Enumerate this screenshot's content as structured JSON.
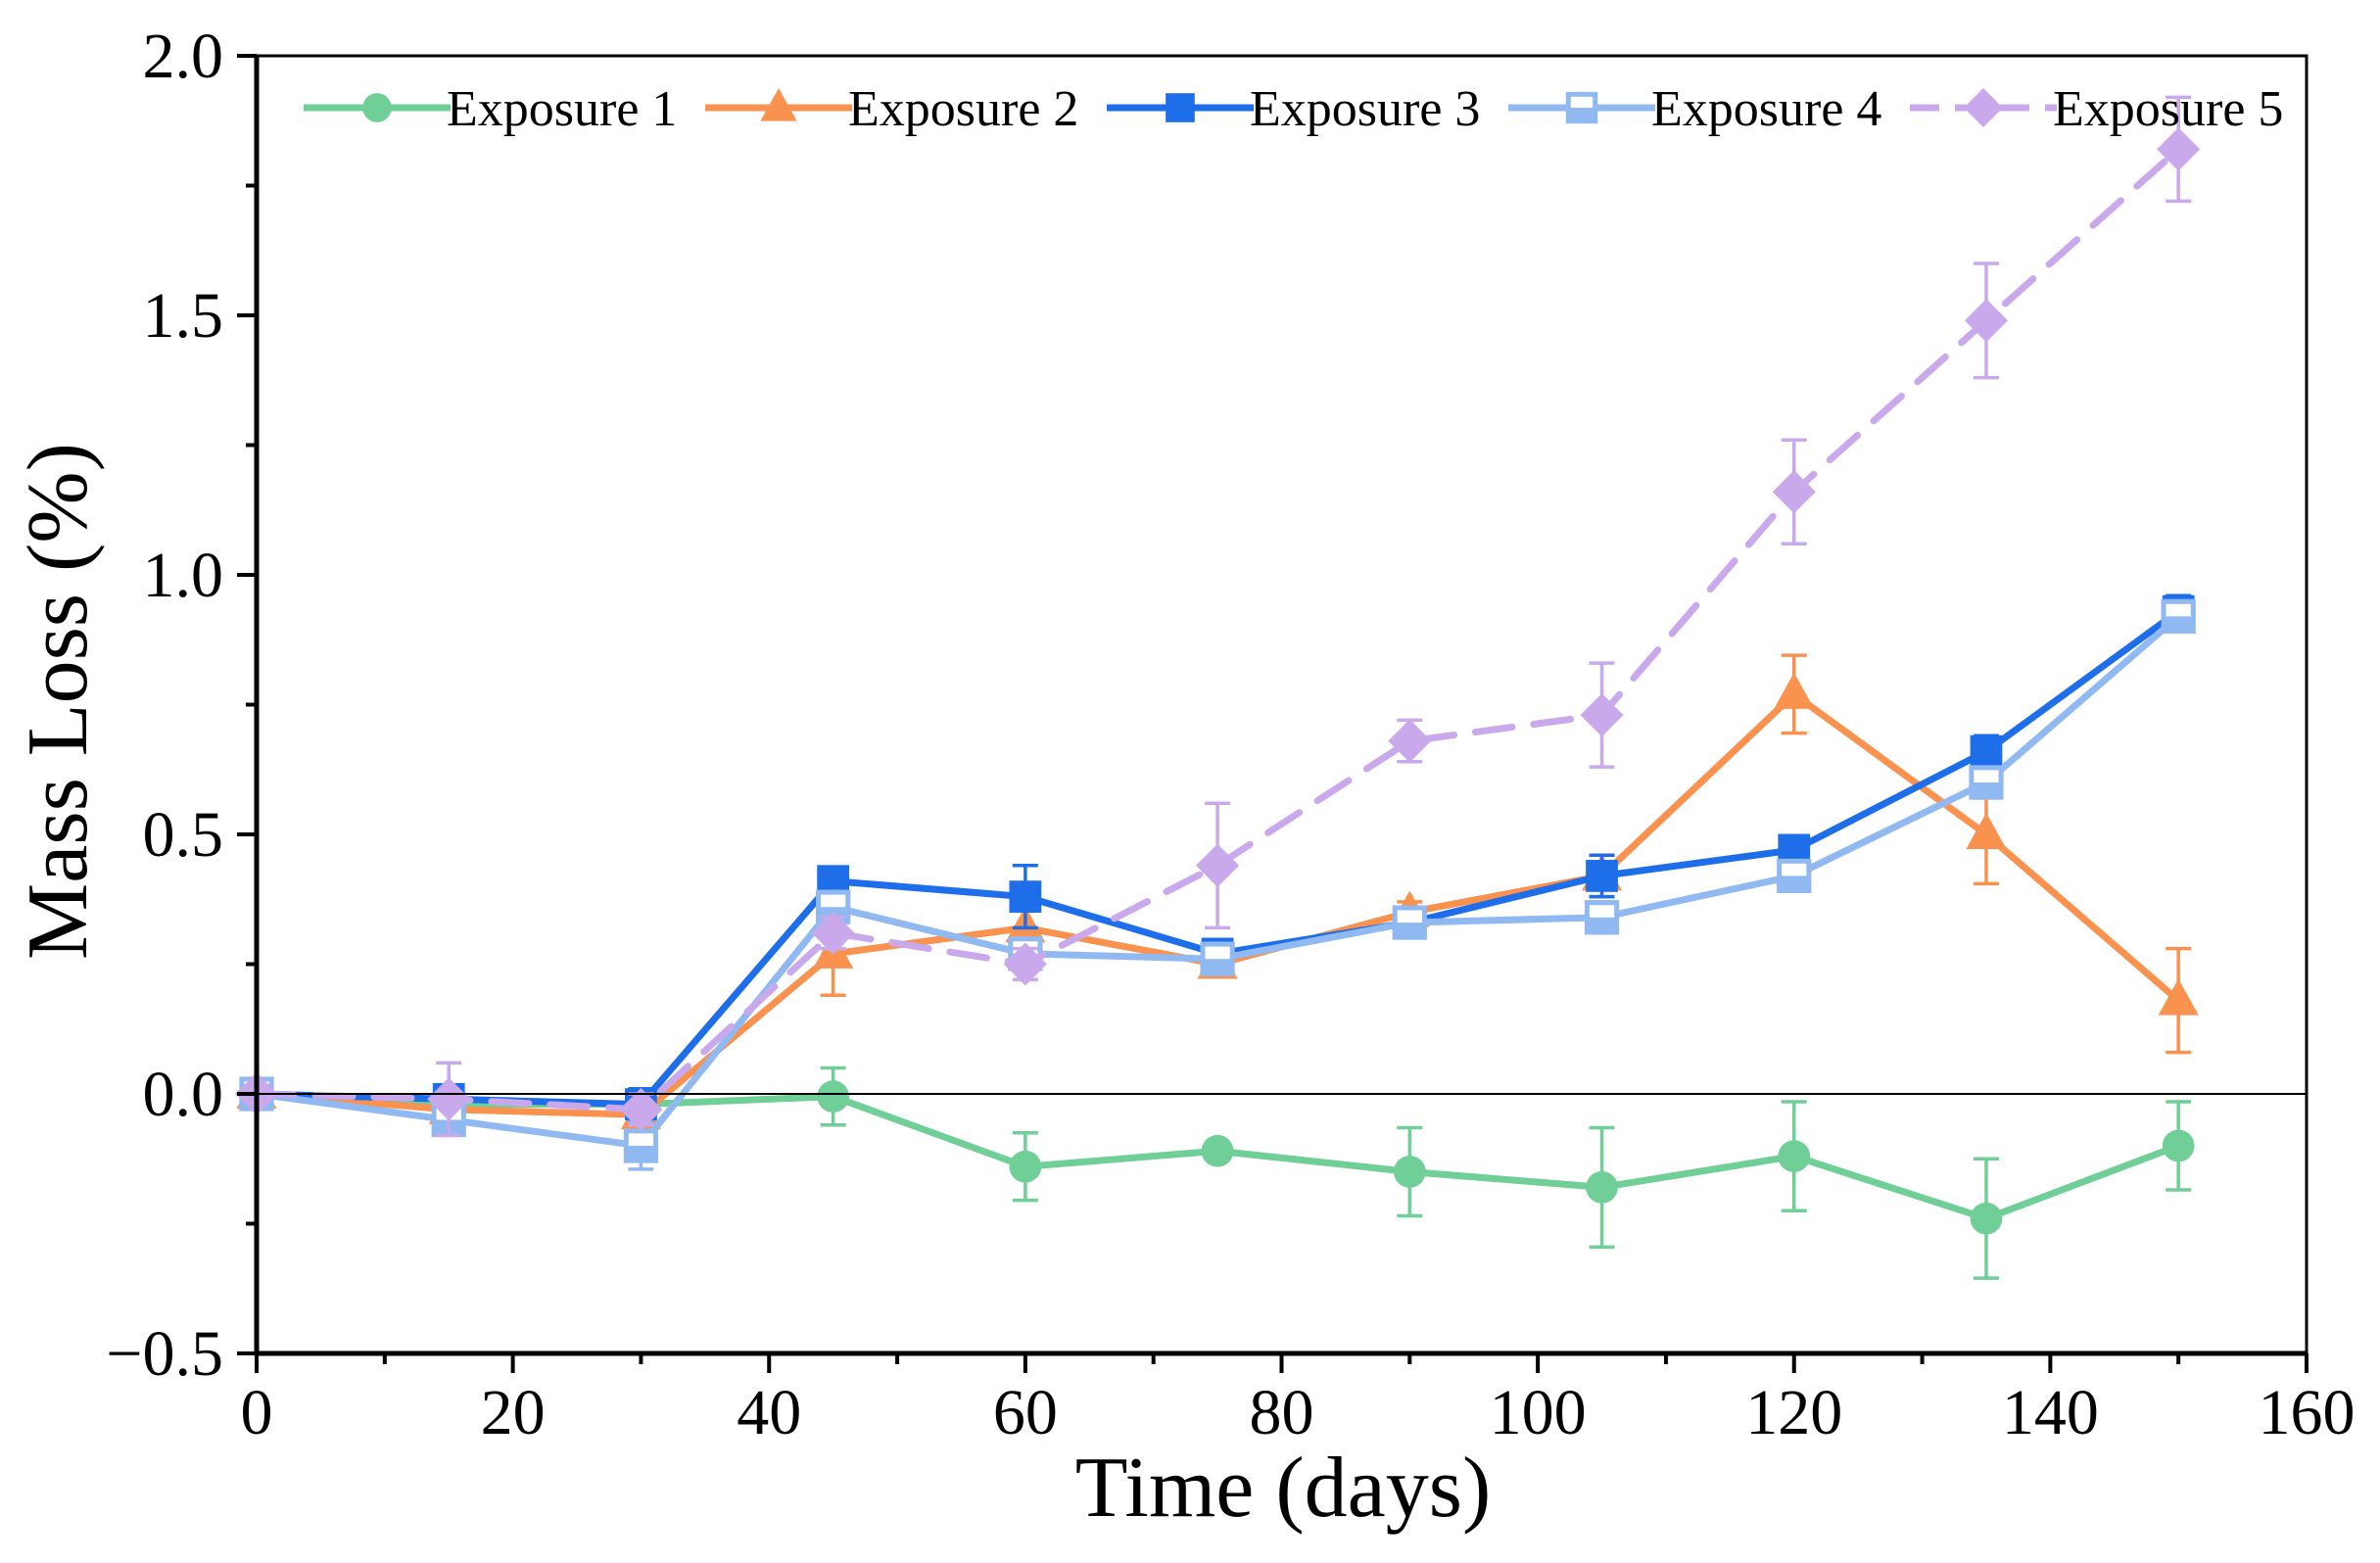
{
  "chart_data": {
    "type": "line",
    "title": "",
    "xlabel": "Time (days)",
    "ylabel": "Mass Loss (%)",
    "xlim": [
      0,
      160
    ],
    "ylim": [
      -0.5,
      2.0
    ],
    "xticks": [
      0,
      20,
      40,
      60,
      80,
      100,
      120,
      140,
      160
    ],
    "xtick_labels": [
      "0",
      "20",
      "40",
      "60",
      "80",
      "100",
      "120",
      "140",
      "160"
    ],
    "yticks": [
      -0.5,
      0.0,
      0.5,
      1.0,
      1.5,
      2.0
    ],
    "ytick_labels": [
      "−0.5",
      "0.0",
      "0.5",
      "1.0",
      "1.5",
      "2.0"
    ],
    "grid": false,
    "zero_line": true,
    "legend_position": "top",
    "x": [
      0,
      15,
      30,
      45,
      60,
      75,
      90,
      105,
      120,
      135,
      150
    ],
    "series": [
      {
        "name": "Exposure 1",
        "color": "#6fcf97",
        "marker": "circle",
        "dashed": false,
        "values": [
          0.0,
          -0.02,
          -0.02,
          -0.005,
          -0.14,
          -0.11,
          -0.15,
          -0.18,
          -0.12,
          -0.24,
          -0.1
        ],
        "errors": [
          0.0,
          0.02,
          0.03,
          0.055,
          0.065,
          0.0,
          0.085,
          0.115,
          0.105,
          0.115,
          0.085
        ]
      },
      {
        "name": "Exposure 2",
        "color": "#f9924f",
        "marker": "triangle",
        "dashed": false,
        "values": [
          0.0,
          -0.03,
          -0.04,
          0.27,
          0.32,
          0.25,
          0.35,
          0.42,
          0.77,
          0.5,
          0.18
        ],
        "errors": [
          0.0,
          0.02,
          0.03,
          0.08,
          0.05,
          0.02,
          0.02,
          0.04,
          0.075,
          0.095,
          0.1
        ]
      },
      {
        "name": "Exposure 3",
        "color": "#1d6ee8",
        "marker": "square",
        "dashed": false,
        "values": [
          0.0,
          -0.01,
          -0.02,
          0.41,
          0.38,
          0.27,
          0.33,
          0.42,
          0.47,
          0.66,
          0.93
        ],
        "errors": [
          0.0,
          0.02,
          0.03,
          0.02,
          0.06,
          0.02,
          0.02,
          0.04,
          0.02,
          0.03,
          0.03
        ]
      },
      {
        "name": "Exposure 4",
        "color": "#8fb9f0",
        "marker": "square-open",
        "dashed": false,
        "values": [
          0.0,
          -0.05,
          -0.1,
          0.36,
          0.27,
          0.26,
          0.33,
          0.34,
          0.42,
          0.6,
          0.92
        ],
        "errors": [
          0.0,
          0.03,
          0.045,
          0.03,
          0.03,
          0.03,
          0.02,
          0.03,
          0.02,
          0.03,
          0.03
        ]
      },
      {
        "name": "Exposure 5",
        "color": "#c9a8ec",
        "marker": "diamond",
        "dashed": true,
        "values": [
          0.0,
          -0.01,
          -0.03,
          0.31,
          0.25,
          0.44,
          0.68,
          0.73,
          1.16,
          1.49,
          1.82
        ],
        "errors": [
          0.0,
          0.07,
          0.03,
          0.03,
          0.03,
          0.12,
          0.04,
          0.1,
          0.1,
          0.11,
          0.1
        ]
      }
    ]
  }
}
